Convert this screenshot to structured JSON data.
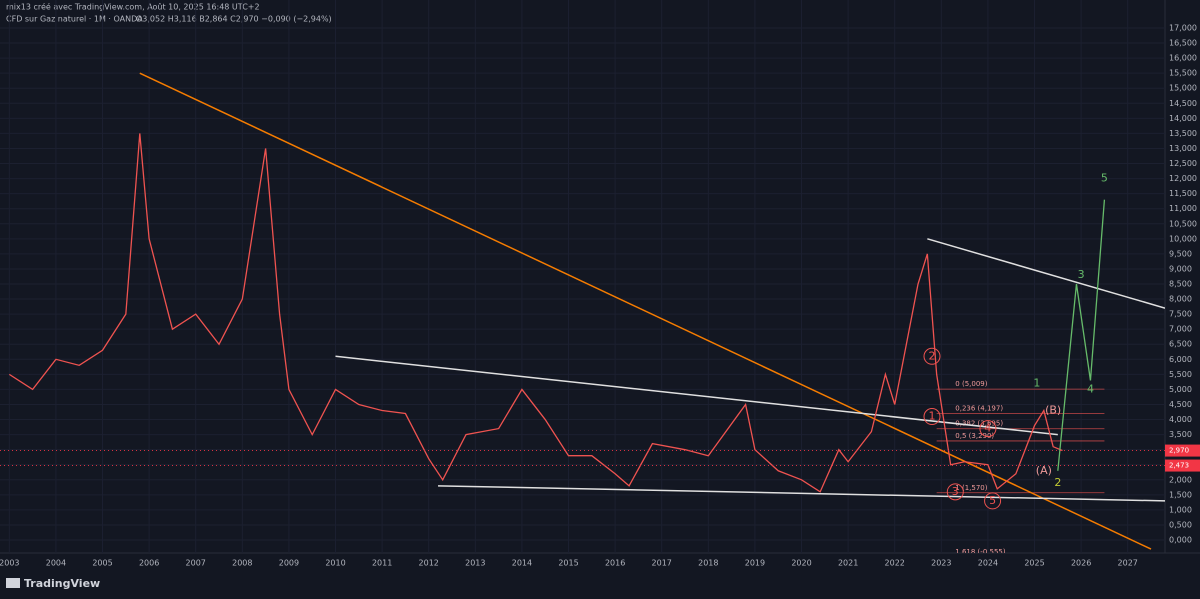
{
  "credit": "mix13 créé avec TradingView.com, Août 10, 2025 16:48 UTC+2",
  "logo": "TradingView",
  "chart_data": {
    "type": "line",
    "title": "CFD sur Gaz naturel · 1M · OANDA",
    "subtitle": "O3,052 H3,116 B2,864 C2,970 −0,090 (−2,94%)",
    "xlim": [
      2002.8,
      2027.8
    ],
    "xticks": [
      2003,
      2004,
      2005,
      2006,
      2007,
      2008,
      2009,
      2010,
      2011,
      2012,
      2013,
      2014,
      2015,
      2016,
      2017,
      2018,
      2019,
      2020,
      2021,
      2022,
      2023,
      2024,
      2025,
      2026,
      2027
    ],
    "ylim": [
      -0.43,
      17.43
    ],
    "yticks": [
      {
        "value": 0,
        "label": "0,000"
      },
      {
        "value": 0.5,
        "label": "0,500"
      },
      {
        "value": 1,
        "label": "1,000"
      },
      {
        "value": 1.5,
        "label": "1,500"
      },
      {
        "value": 2,
        "label": "2,000"
      },
      {
        "value": 2.5,
        "label": "2,500"
      },
      {
        "value": 3,
        "label": "3,000"
      },
      {
        "value": 3.5,
        "label": "3,500"
      },
      {
        "value": 4,
        "label": "4,000"
      },
      {
        "value": 4.5,
        "label": "4,500"
      },
      {
        "value": 5,
        "label": "5,000"
      },
      {
        "value": 5.5,
        "label": "5,500"
      },
      {
        "value": 6,
        "label": "6,000"
      },
      {
        "value": 6.5,
        "label": "6,500"
      },
      {
        "value": 7,
        "label": "7,000"
      },
      {
        "value": 7.5,
        "label": "7,500"
      },
      {
        "value": 8,
        "label": "8,000"
      },
      {
        "value": 8.5,
        "label": "8,500"
      },
      {
        "value": 9,
        "label": "9,000"
      },
      {
        "value": 9.5,
        "label": "9,500"
      },
      {
        "value": 10,
        "label": "10,000"
      },
      {
        "value": 10.5,
        "label": "10,500"
      },
      {
        "value": 11,
        "label": "11,000"
      },
      {
        "value": 11.5,
        "label": "11,500"
      },
      {
        "value": 12,
        "label": "12,000"
      },
      {
        "value": 12.5,
        "label": "12,500"
      },
      {
        "value": 13,
        "label": "13,000"
      },
      {
        "value": 13.5,
        "label": "13,500"
      },
      {
        "value": 14,
        "label": "14,000"
      },
      {
        "value": 14.5,
        "label": "14,500"
      },
      {
        "value": 15,
        "label": "15,000"
      },
      {
        "value": 15.5,
        "label": "15,500"
      },
      {
        "value": 16,
        "label": "16,000"
      },
      {
        "value": 16.5,
        "label": "16,500"
      },
      {
        "value": 17,
        "label": "17,000"
      }
    ],
    "series": [
      {
        "color": "#ef5350",
        "x": [
          2003.0,
          2003.5,
          2004.0,
          2004.5,
          2005.0,
          2005.5,
          2005.8,
          2006.0,
          2006.5,
          2007.0,
          2007.5,
          2008.0,
          2008.5,
          2008.8,
          2009.0,
          2009.5,
          2010.0,
          2010.5,
          2011.0,
          2011.5,
          2012.0,
          2012.3,
          2012.8,
          2013.5,
          2014.0,
          2014.5,
          2015.0,
          2015.5,
          2016.0,
          2016.3,
          2016.8,
          2017.5,
          2018.0,
          2018.8,
          2019.0,
          2019.5,
          2020.0,
          2020.4,
          2020.8,
          2021.0,
          2021.5,
          2021.8,
          2022.0,
          2022.5,
          2022.7,
          2022.9,
          2023.2,
          2023.5,
          2024.0,
          2024.2,
          2024.6,
          2025.0,
          2025.2,
          2025.4,
          2025.6
        ],
        "values": [
          5.5,
          5.0,
          6.0,
          5.8,
          6.3,
          7.5,
          13.5,
          10.0,
          7.0,
          7.5,
          6.5,
          8.0,
          13.0,
          7.5,
          5.0,
          3.5,
          5.0,
          4.5,
          4.3,
          4.2,
          2.7,
          2.0,
          3.5,
          3.7,
          5.0,
          4.0,
          2.8,
          2.8,
          2.2,
          1.8,
          3.2,
          3.0,
          2.8,
          4.5,
          3.0,
          2.3,
          2.0,
          1.6,
          3.0,
          2.6,
          3.6,
          5.5,
          4.5,
          8.5,
          9.5,
          5.5,
          2.5,
          2.6,
          2.5,
          1.7,
          2.2,
          3.8,
          4.3,
          3.1,
          2.97
        ]
      },
      {
        "color": "#66bb6a",
        "x": [
          2025.5,
          2025.9,
          2026.2,
          2026.5
        ],
        "values": [
          2.3,
          8.5,
          5.3,
          11.3
        ]
      }
    ],
    "trendlines": [
      {
        "color": "#f57c00",
        "x": [
          2005.8,
          2027.5
        ],
        "values": [
          15.5,
          -0.3
        ]
      },
      {
        "color": "#e0e0e0",
        "x": [
          2022.7,
          2027.8
        ],
        "values": [
          10.0,
          7.7
        ]
      },
      {
        "color": "#e0e0e0",
        "x": [
          2012.2,
          2027.8
        ],
        "values": [
          1.8,
          1.3
        ]
      },
      {
        "color": "#e0e0e0",
        "x": [
          2010.0,
          2025.5
        ],
        "values": [
          6.1,
          3.5
        ]
      }
    ],
    "fib_levels": [
      {
        "label": "0 (5,009)",
        "value": 5.009
      },
      {
        "label": "0,236 (4,197)",
        "value": 4.197
      },
      {
        "label": "0,382 (3,695)",
        "value": 3.695
      },
      {
        "label": "0,5 (3,290)",
        "value": 3.29
      },
      {
        "label": "1 (1,570)",
        "value": 1.57
      },
      {
        "label": "1,618 (-0,555)",
        "value": -0.555
      }
    ],
    "wave_labels": [
      {
        "text": "2",
        "x": 2022.8,
        "y": 6.1,
        "color": "#ef5350"
      },
      {
        "text": "1",
        "x": 2022.8,
        "y": 4.1,
        "color": "#ef5350"
      },
      {
        "text": "3",
        "x": 2023.3,
        "y": 1.6,
        "color": "#ef5350"
      },
      {
        "text": "4",
        "x": 2024.0,
        "y": 3.7,
        "color": "#ef5350"
      },
      {
        "text": "5",
        "x": 2024.1,
        "y": 1.3,
        "color": "#ef5350"
      },
      {
        "text": "(A)",
        "x": 2025.2,
        "y": 2.3,
        "color": "#ef9a9a"
      },
      {
        "text": "(B)",
        "x": 2025.4,
        "y": 4.3,
        "color": "#ef9a9a"
      },
      {
        "text": "1",
        "x": 2025.05,
        "y": 5.2,
        "color": "#66bb6a"
      },
      {
        "text": "2",
        "x": 2025.5,
        "y": 1.9,
        "color": "#c0ca33"
      },
      {
        "text": "3",
        "x": 2026.0,
        "y": 8.8,
        "color": "#66bb6a"
      },
      {
        "text": "4",
        "x": 2026.2,
        "y": 5.0,
        "color": "#66bb6a"
      },
      {
        "text": "5",
        "x": 2026.5,
        "y": 12.0,
        "color": "#66bb6a"
      }
    ],
    "price_tags": [
      {
        "value": 2.97,
        "label": "2,970",
        "color": "#f23645"
      },
      {
        "value": 2.473,
        "label": "2,473",
        "color": "#f23645"
      }
    ]
  }
}
